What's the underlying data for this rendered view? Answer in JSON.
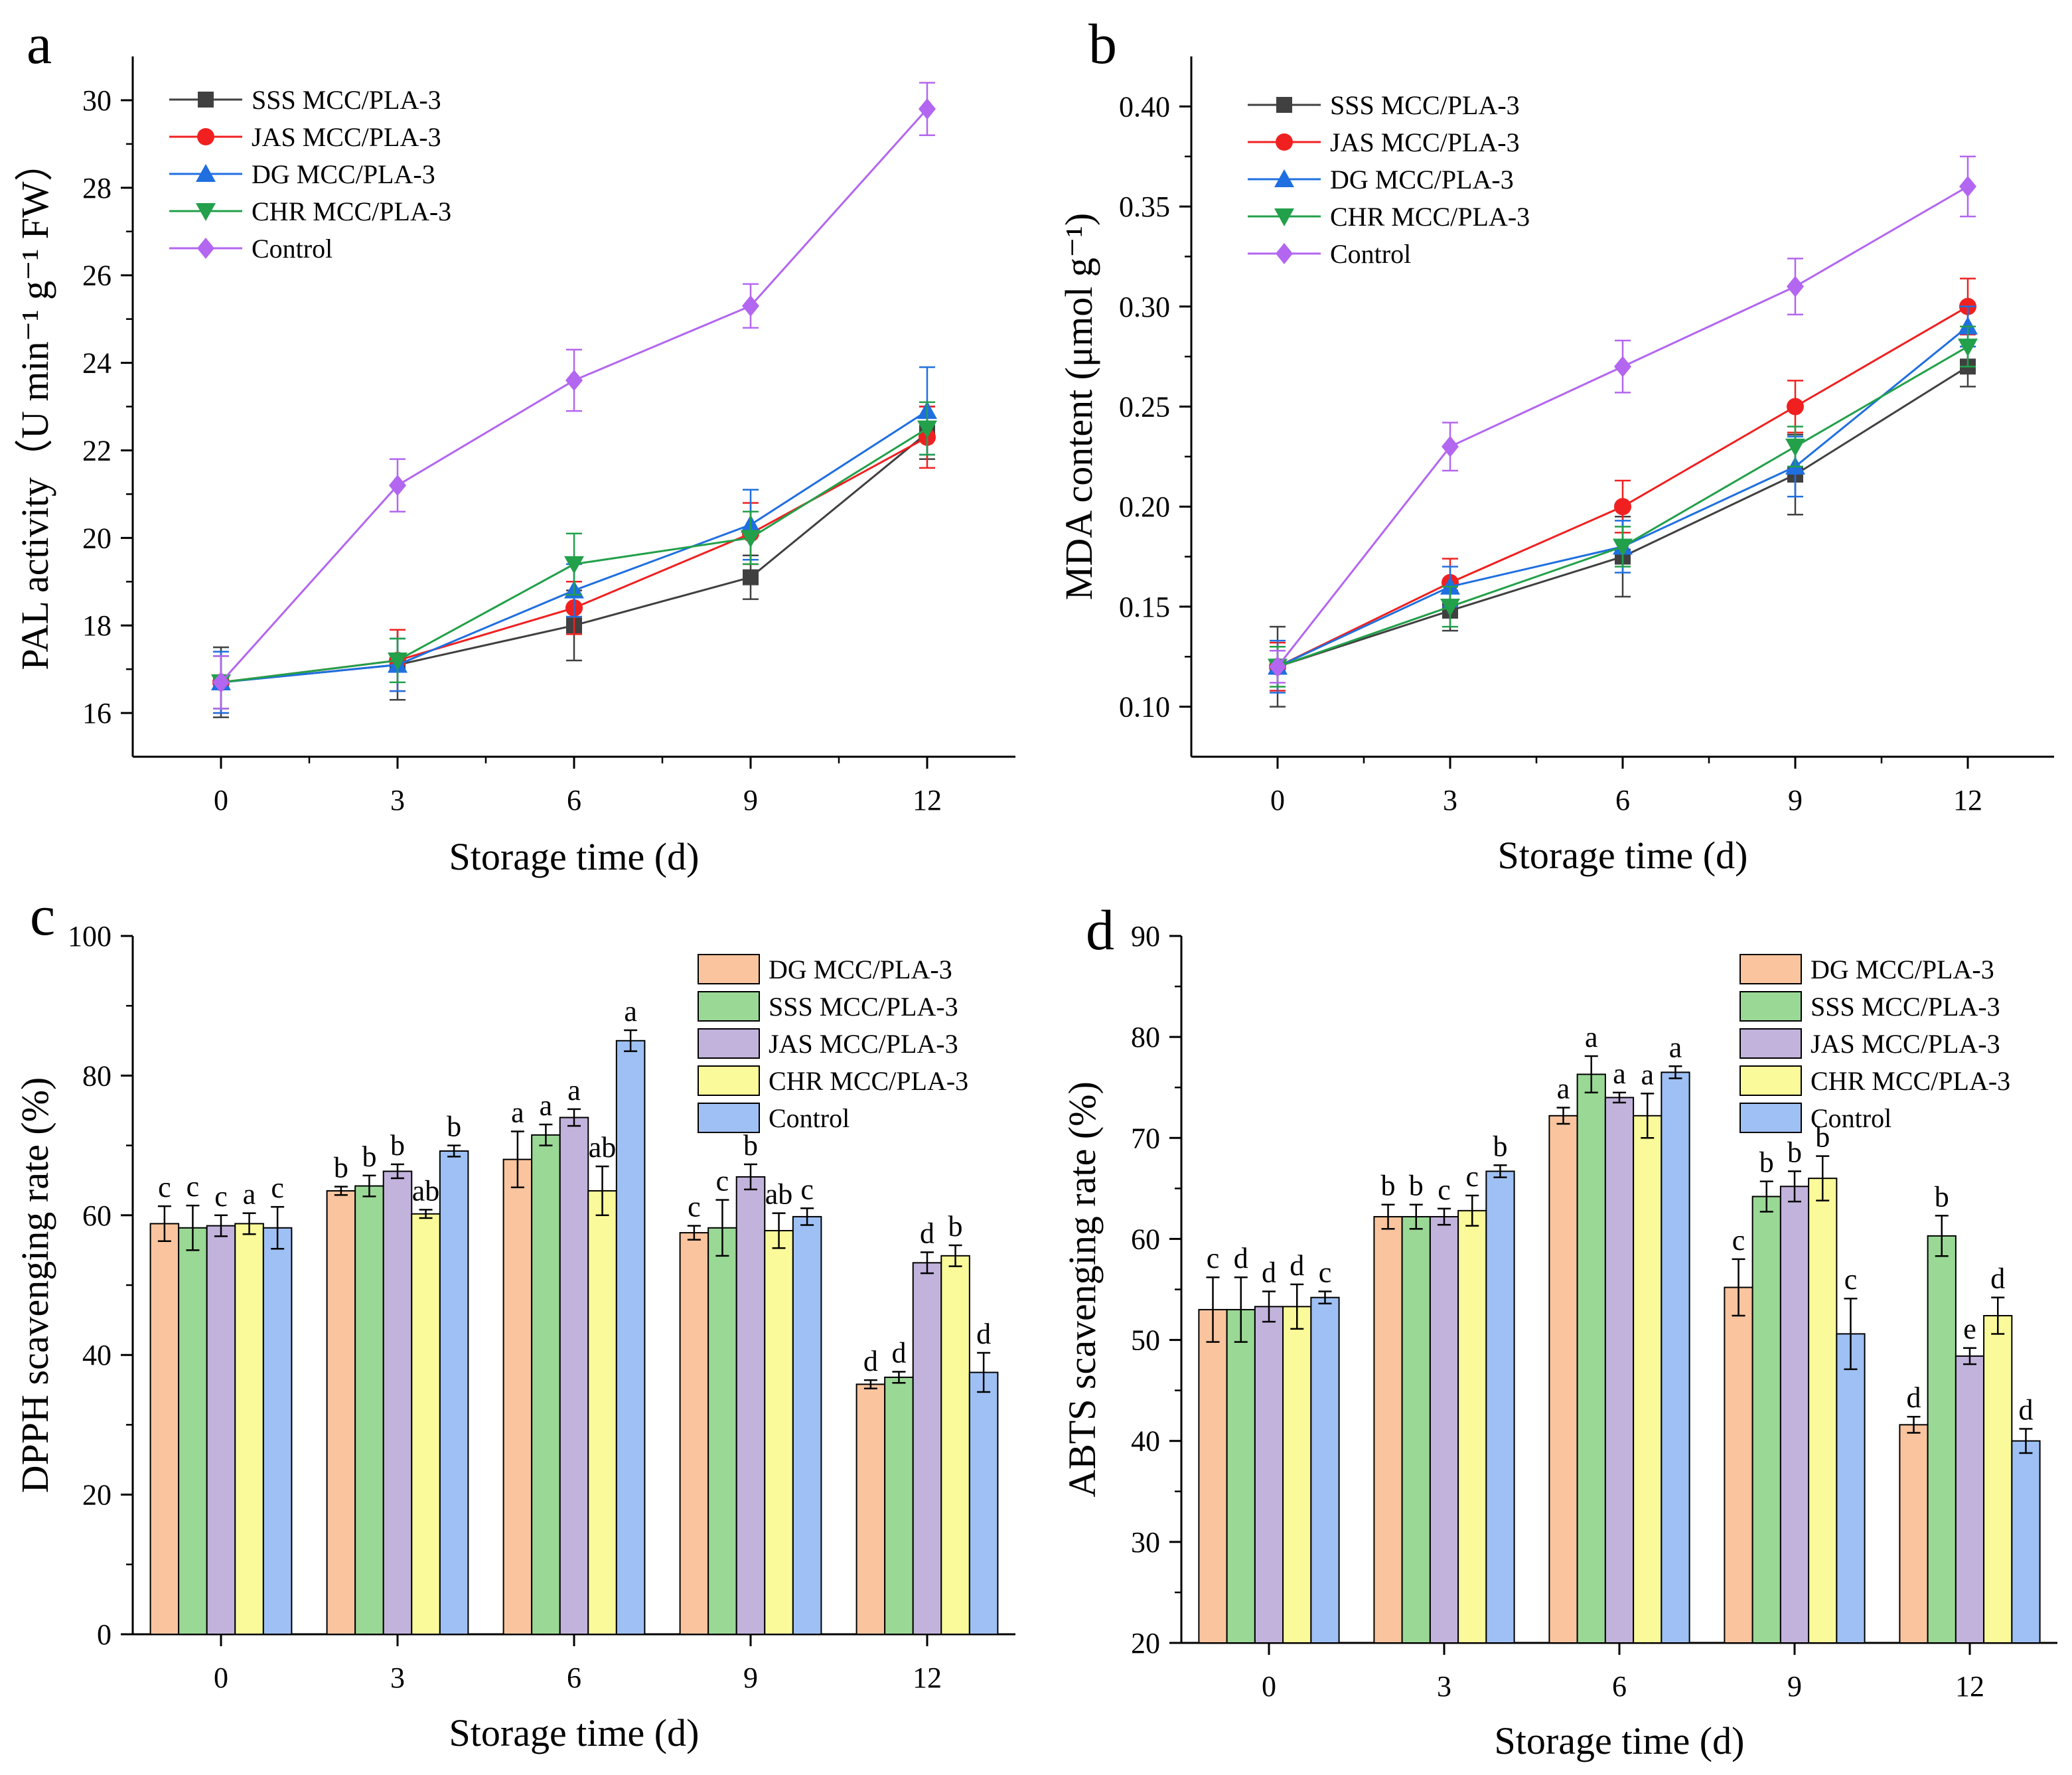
{
  "colors": {
    "SSS MCC/PLA-3": "#404040",
    "JAS MCC/PLA-3": "#f02020",
    "DG MCC/PLA-3": "#1f6fe0",
    "CHR MCC/PLA-3": "#22a04a",
    "Control": "#b366f0"
  },
  "bar_colors": {
    "DG MCC/PLA-3": "#f9c49e",
    "SSS MCC/PLA-3": "#9ad895",
    "JAS MCC/PLA-3": "#c2b3dc",
    "CHR MCC/PLA-3": "#fafa9a",
    "Control": "#9ec0f4"
  },
  "chart_data": [
    {
      "panel": "a",
      "type": "line",
      "xlabel": "Storage time (d)",
      "ylabel": "PAL activity（U min⁻¹ g⁻¹ FW）",
      "x": [
        0,
        3,
        6,
        9,
        12
      ],
      "xlim": [
        -1.5,
        13.5
      ],
      "ylim": [
        15,
        31
      ],
      "yticks": [
        16,
        18,
        20,
        22,
        24,
        26,
        28,
        30
      ],
      "legend_position": "top-left",
      "series": [
        {
          "name": "SSS MCC/PLA-3",
          "marker": "square",
          "values": [
            16.7,
            17.1,
            18.0,
            19.1,
            22.4
          ],
          "errors": [
            0.8,
            0.8,
            0.8,
            0.5,
            0.6
          ]
        },
        {
          "name": "JAS MCC/PLA-3",
          "marker": "circle",
          "values": [
            16.7,
            17.2,
            18.4,
            20.1,
            22.3
          ],
          "errors": [
            0.7,
            0.7,
            0.6,
            0.7,
            0.7
          ]
        },
        {
          "name": "DG MCC/PLA-3",
          "marker": "triangle-up",
          "values": [
            16.7,
            17.1,
            18.8,
            20.3,
            22.9
          ],
          "errors": [
            0.7,
            0.6,
            0.6,
            0.8,
            1.0
          ]
        },
        {
          "name": "CHR MCC/PLA-3",
          "marker": "triangle-down",
          "values": [
            16.7,
            17.2,
            19.4,
            20.0,
            22.5
          ],
          "errors": [
            0.6,
            0.5,
            0.7,
            0.6,
            0.6
          ]
        },
        {
          "name": "Control",
          "marker": "diamond",
          "values": [
            16.7,
            21.2,
            23.6,
            25.3,
            29.8
          ],
          "errors": [
            0.6,
            0.6,
            0.7,
            0.5,
            0.6
          ]
        }
      ]
    },
    {
      "panel": "b",
      "type": "line",
      "xlabel": "Storage time (d)",
      "ylabel": "MDA content (μmol g⁻¹)",
      "x": [
        0,
        3,
        6,
        9,
        12
      ],
      "xlim": [
        -1.5,
        13.5
      ],
      "ylim": [
        0.075,
        0.425
      ],
      "yticks": [
        0.1,
        0.15,
        0.2,
        0.25,
        0.3,
        0.35,
        0.4
      ],
      "legend_position": "top-left",
      "series": [
        {
          "name": "SSS MCC/PLA-3",
          "marker": "square",
          "values": [
            0.12,
            0.148,
            0.175,
            0.216,
            0.27
          ],
          "errors": [
            0.02,
            0.01,
            0.02,
            0.02,
            0.01
          ]
        },
        {
          "name": "JAS MCC/PLA-3",
          "marker": "circle",
          "values": [
            0.12,
            0.162,
            0.2,
            0.25,
            0.3
          ],
          "errors": [
            0.012,
            0.012,
            0.013,
            0.013,
            0.014
          ]
        },
        {
          "name": "DG MCC/PLA-3",
          "marker": "triangle-up",
          "values": [
            0.12,
            0.16,
            0.18,
            0.22,
            0.29
          ],
          "errors": [
            0.013,
            0.01,
            0.013,
            0.015,
            0.01
          ]
        },
        {
          "name": "CHR MCC/PLA-3",
          "marker": "triangle-down",
          "values": [
            0.12,
            0.15,
            0.18,
            0.23,
            0.28
          ],
          "errors": [
            0.01,
            0.01,
            0.01,
            0.01,
            0.01
          ]
        },
        {
          "name": "Control",
          "marker": "diamond",
          "values": [
            0.12,
            0.23,
            0.27,
            0.31,
            0.36
          ],
          "errors": [
            0.008,
            0.012,
            0.013,
            0.014,
            0.015
          ]
        }
      ]
    },
    {
      "panel": "c",
      "type": "bar",
      "xlabel": "Storage time (d)",
      "ylabel": "DPPH scavenging rate (%)",
      "categories": [
        "0",
        "3",
        "6",
        "9",
        "12"
      ],
      "ylim": [
        0,
        100
      ],
      "yticks": [
        0,
        20,
        40,
        60,
        80,
        100
      ],
      "legend_position": "top-right",
      "series": [
        {
          "name": "DG MCC/PLA-3",
          "values": [
            58.8,
            63.5,
            68.0,
            57.5,
            35.8
          ],
          "errors": [
            2.5,
            0.6,
            4.0,
            1.0,
            0.6
          ],
          "labels": [
            "c",
            "b",
            "a",
            "c",
            "d"
          ]
        },
        {
          "name": "SSS MCC/PLA-3",
          "values": [
            58.2,
            64.2,
            71.5,
            58.2,
            36.8
          ],
          "errors": [
            3.2,
            1.5,
            1.5,
            4.0,
            0.8
          ],
          "labels": [
            "c",
            "b",
            "a",
            "c",
            "d"
          ]
        },
        {
          "name": "JAS MCC/PLA-3",
          "values": [
            58.5,
            66.3,
            74.0,
            65.5,
            53.2
          ],
          "errors": [
            1.5,
            1.0,
            1.2,
            1.8,
            1.5
          ],
          "labels": [
            "c",
            "b",
            "a",
            "b",
            "d"
          ]
        },
        {
          "name": "CHR MCC/PLA-3",
          "values": [
            58.8,
            60.2,
            63.5,
            57.8,
            54.2
          ],
          "errors": [
            1.5,
            0.6,
            3.5,
            2.5,
            1.5
          ],
          "labels": [
            "a",
            "ab",
            "ab",
            "ab",
            "b"
          ]
        },
        {
          "name": "Control",
          "values": [
            58.2,
            69.2,
            85.0,
            59.8,
            37.5
          ],
          "errors": [
            3.0,
            0.8,
            1.5,
            1.2,
            2.8
          ],
          "labels": [
            "c",
            "b",
            "a",
            "c",
            "d"
          ]
        }
      ]
    },
    {
      "panel": "d",
      "type": "bar",
      "xlabel": "Storage time (d)",
      "ylabel": "ABTS scavenging rate (%)",
      "categories": [
        "0",
        "3",
        "6",
        "9",
        "12"
      ],
      "ylim": [
        20,
        90
      ],
      "yticks": [
        20,
        30,
        40,
        50,
        60,
        70,
        80,
        90
      ],
      "legend_position": "top-right",
      "series": [
        {
          "name": "DG MCC/PLA-3",
          "values": [
            53.0,
            62.2,
            72.2,
            55.2,
            41.6
          ],
          "errors": [
            3.2,
            1.2,
            0.8,
            2.8,
            0.8
          ],
          "labels": [
            "c",
            "b",
            "a",
            "c",
            "d"
          ]
        },
        {
          "name": "SSS MCC/PLA-3",
          "values": [
            53.0,
            62.2,
            76.3,
            64.2,
            60.3
          ],
          "errors": [
            3.2,
            1.2,
            1.8,
            1.5,
            2.0
          ],
          "labels": [
            "d",
            "b",
            "a",
            "b",
            "b"
          ]
        },
        {
          "name": "JAS MCC/PLA-3",
          "values": [
            53.3,
            62.2,
            74.0,
            65.2,
            48.4
          ],
          "errors": [
            1.5,
            0.8,
            0.5,
            1.5,
            0.8
          ],
          "labels": [
            "d",
            "c",
            "a",
            "b",
            "e"
          ]
        },
        {
          "name": "CHR MCC/PLA-3",
          "values": [
            53.3,
            62.8,
            72.2,
            66.0,
            52.4
          ],
          "errors": [
            2.2,
            1.5,
            2.2,
            2.2,
            1.8
          ],
          "labels": [
            "d",
            "c",
            "a",
            "b",
            "d"
          ]
        },
        {
          "name": "Control",
          "values": [
            54.2,
            66.7,
            76.5,
            50.6,
            40.0
          ],
          "errors": [
            0.6,
            0.6,
            0.6,
            3.5,
            1.2
          ],
          "labels": [
            "c",
            "b",
            "a",
            "c",
            "d"
          ]
        }
      ]
    }
  ]
}
